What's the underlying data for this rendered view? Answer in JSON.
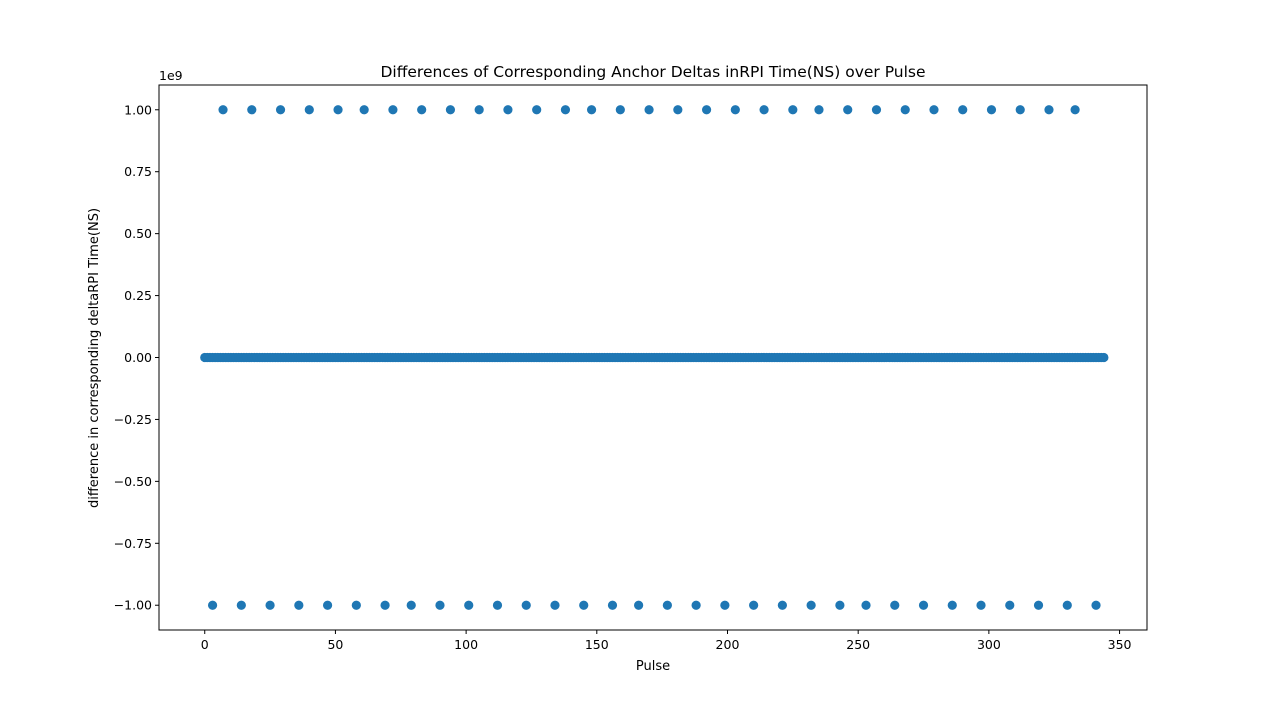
{
  "chart_data": {
    "type": "scatter",
    "title": "Differences of Corresponding Anchor Deltas inRPI Time(NS) over Pulse",
    "xlabel": "Pulse",
    "ylabel": "difference in corresponding deltaRPI Time(NS)",
    "y_offset_label": "1e9",
    "xlim": [
      -17.5,
      360.5
    ],
    "ylim": [
      -1.1,
      1.1
    ],
    "x_ticks": [
      0,
      50,
      100,
      150,
      200,
      250,
      300,
      350
    ],
    "x_tick_labels": [
      "0",
      "50",
      "100",
      "150",
      "200",
      "250",
      "300",
      "350"
    ],
    "y_ticks": [
      1.0,
      0.75,
      0.5,
      0.25,
      0.0,
      -0.25,
      -0.5,
      -0.75,
      -1.0
    ],
    "y_tick_labels": [
      "1.00",
      "0.75",
      "0.50",
      "0.25",
      "0.00",
      "−0.25",
      "−0.50",
      "−0.75",
      "−1.00"
    ],
    "grid": false,
    "marker_color": "#1f77b4",
    "series": [
      {
        "values_unit": "1e9 ns",
        "top_x": [
          7,
          18,
          29,
          40,
          51,
          61,
          72,
          83,
          94,
          105,
          116,
          127,
          138,
          148,
          159,
          170,
          181,
          192,
          203,
          214,
          225,
          235,
          246,
          257,
          268,
          279,
          290,
          301,
          312,
          323,
          333
        ],
        "top_y": 1.0,
        "bottom_x": [
          3,
          14,
          25,
          36,
          47,
          58,
          69,
          79,
          90,
          101,
          112,
          123,
          134,
          145,
          156,
          166,
          177,
          188,
          199,
          210,
          221,
          232,
          243,
          253,
          264,
          275,
          286,
          297,
          308,
          319,
          330,
          341
        ],
        "bottom_y": -1.0,
        "middle_x_range": [
          0,
          344
        ],
        "middle_y": 0.0
      }
    ]
  }
}
